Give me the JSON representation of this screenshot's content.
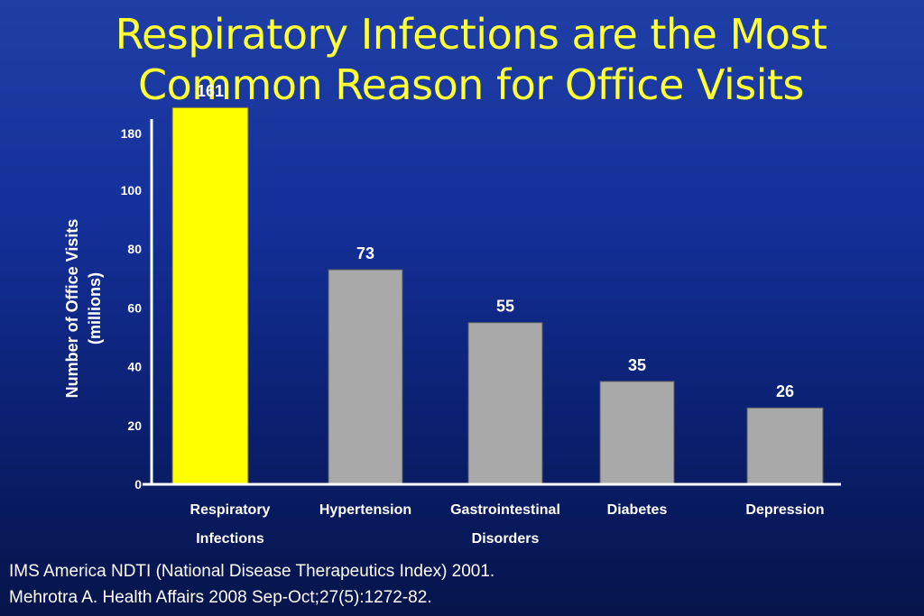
{
  "slide": {
    "title_line1": "Respiratory Infections are the Most",
    "title_line2": "Common Reason for Office Visits",
    "citation_line1": "IMS America NDTI (National Disease Therapeutics Index) 2001.",
    "citation_line2": "Mehrotra A. Health Affairs 2008 Sep-Oct;27(5):1272-82."
  },
  "colors": {
    "highlight_bar": "#ffff00",
    "bar": "#a9a9a9",
    "axis": "#ffffff",
    "title": "#ffff33"
  },
  "chart_data": {
    "type": "bar",
    "title": "Respiratory Infections are the Most Common Reason for Office Visits",
    "ylabel_lines": [
      "Number of Office Visits",
      "(millions)"
    ],
    "xlabel": "",
    "categories": [
      [
        "Respiratory",
        "Infections"
      ],
      [
        "Hypertension"
      ],
      [
        "Gastrointestinal",
        "Disorders"
      ],
      [
        "Diabetes"
      ],
      [
        "Depression"
      ]
    ],
    "values": [
      161,
      73,
      55,
      35,
      26
    ],
    "value_labels": [
      "161",
      "73",
      "55",
      "35",
      "26"
    ],
    "y_ticks": [
      0,
      20,
      40,
      60,
      80,
      100,
      180
    ],
    "axis_break": "between 100 and 180",
    "highlight_index": 0,
    "grid": false,
    "legend": "none"
  }
}
